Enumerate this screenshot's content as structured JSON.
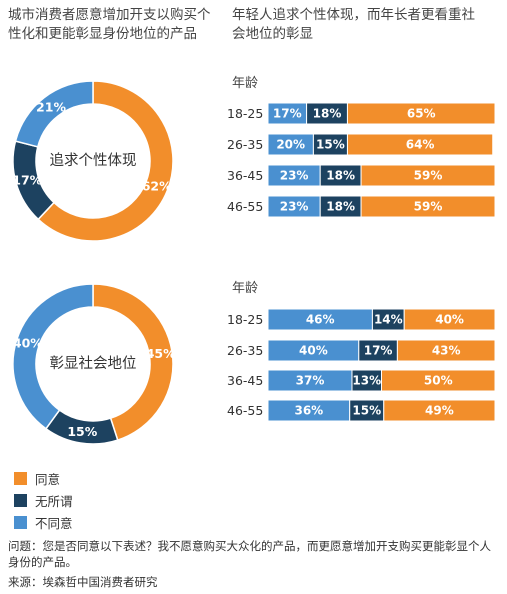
{
  "title_left": "城市消费者愿意增加开支以购买个性化和更能彰显身份地位的产品",
  "title_right": "年轻人追求个性体现，而年长者更看重社会地位的彰显",
  "age_label": "年龄",
  "colors": {
    "agree": "#F28E2B",
    "neutral": "#1D4260",
    "disagree": "#4A90D0"
  },
  "legend": [
    {
      "label": "同意",
      "color_key": "agree"
    },
    {
      "label": "无所谓",
      "color_key": "neutral"
    },
    {
      "label": "不同意",
      "color_key": "disagree"
    }
  ],
  "question": "问题：您是否同意以下表述？我不愿意购买大众化的产品，而更愿意增加开支购买更能彰显个人身份的产品。",
  "source": "来源：埃森哲中国消费者研究",
  "chart_data": [
    {
      "type": "pie",
      "title": "追求个性体现",
      "labels": [
        "同意",
        "无所谓",
        "不同意"
      ],
      "values": [
        62,
        17,
        21
      ],
      "value_labels": [
        "62%",
        "17%",
        "21%"
      ]
    },
    {
      "type": "bar",
      "stacked": true,
      "orientation": "horizontal",
      "title": "追求个性体现",
      "ylabel": "年龄",
      "categories": [
        "18-25",
        "26-35",
        "36-45",
        "46-55"
      ],
      "series": [
        {
          "name": "不同意",
          "values": [
            17,
            20,
            23,
            23
          ],
          "labels": [
            "17%",
            "20%",
            "23%",
            "23%"
          ]
        },
        {
          "name": "无所谓",
          "values": [
            18,
            15,
            18,
            18
          ],
          "labels": [
            "18%",
            "15%",
            "18%",
            "18%"
          ]
        },
        {
          "name": "同意",
          "values": [
            65,
            64,
            59,
            59
          ],
          "labels": [
            "65%",
            "64%",
            "59%",
            "59%"
          ]
        }
      ]
    },
    {
      "type": "pie",
      "title": "彰显社会地位",
      "labels": [
        "同意",
        "无所谓",
        "不同意"
      ],
      "values": [
        45,
        15,
        40
      ],
      "value_labels": [
        "45%",
        "15%",
        "40%"
      ]
    },
    {
      "type": "bar",
      "stacked": true,
      "orientation": "horizontal",
      "title": "彰显社会地位",
      "ylabel": "年龄",
      "categories": [
        "18-25",
        "26-35",
        "36-45",
        "46-55"
      ],
      "series": [
        {
          "name": "不同意",
          "values": [
            46,
            40,
            37,
            36
          ],
          "labels": [
            "46%",
            "40%",
            "37%",
            "36%"
          ]
        },
        {
          "name": "无所谓",
          "values": [
            14,
            17,
            13,
            15
          ],
          "labels": [
            "14%",
            "17%",
            "13%",
            "15%"
          ]
        },
        {
          "name": "同意",
          "values": [
            40,
            43,
            50,
            49
          ],
          "labels": [
            "40%",
            "43%",
            "50%",
            "49%"
          ]
        }
      ]
    }
  ]
}
